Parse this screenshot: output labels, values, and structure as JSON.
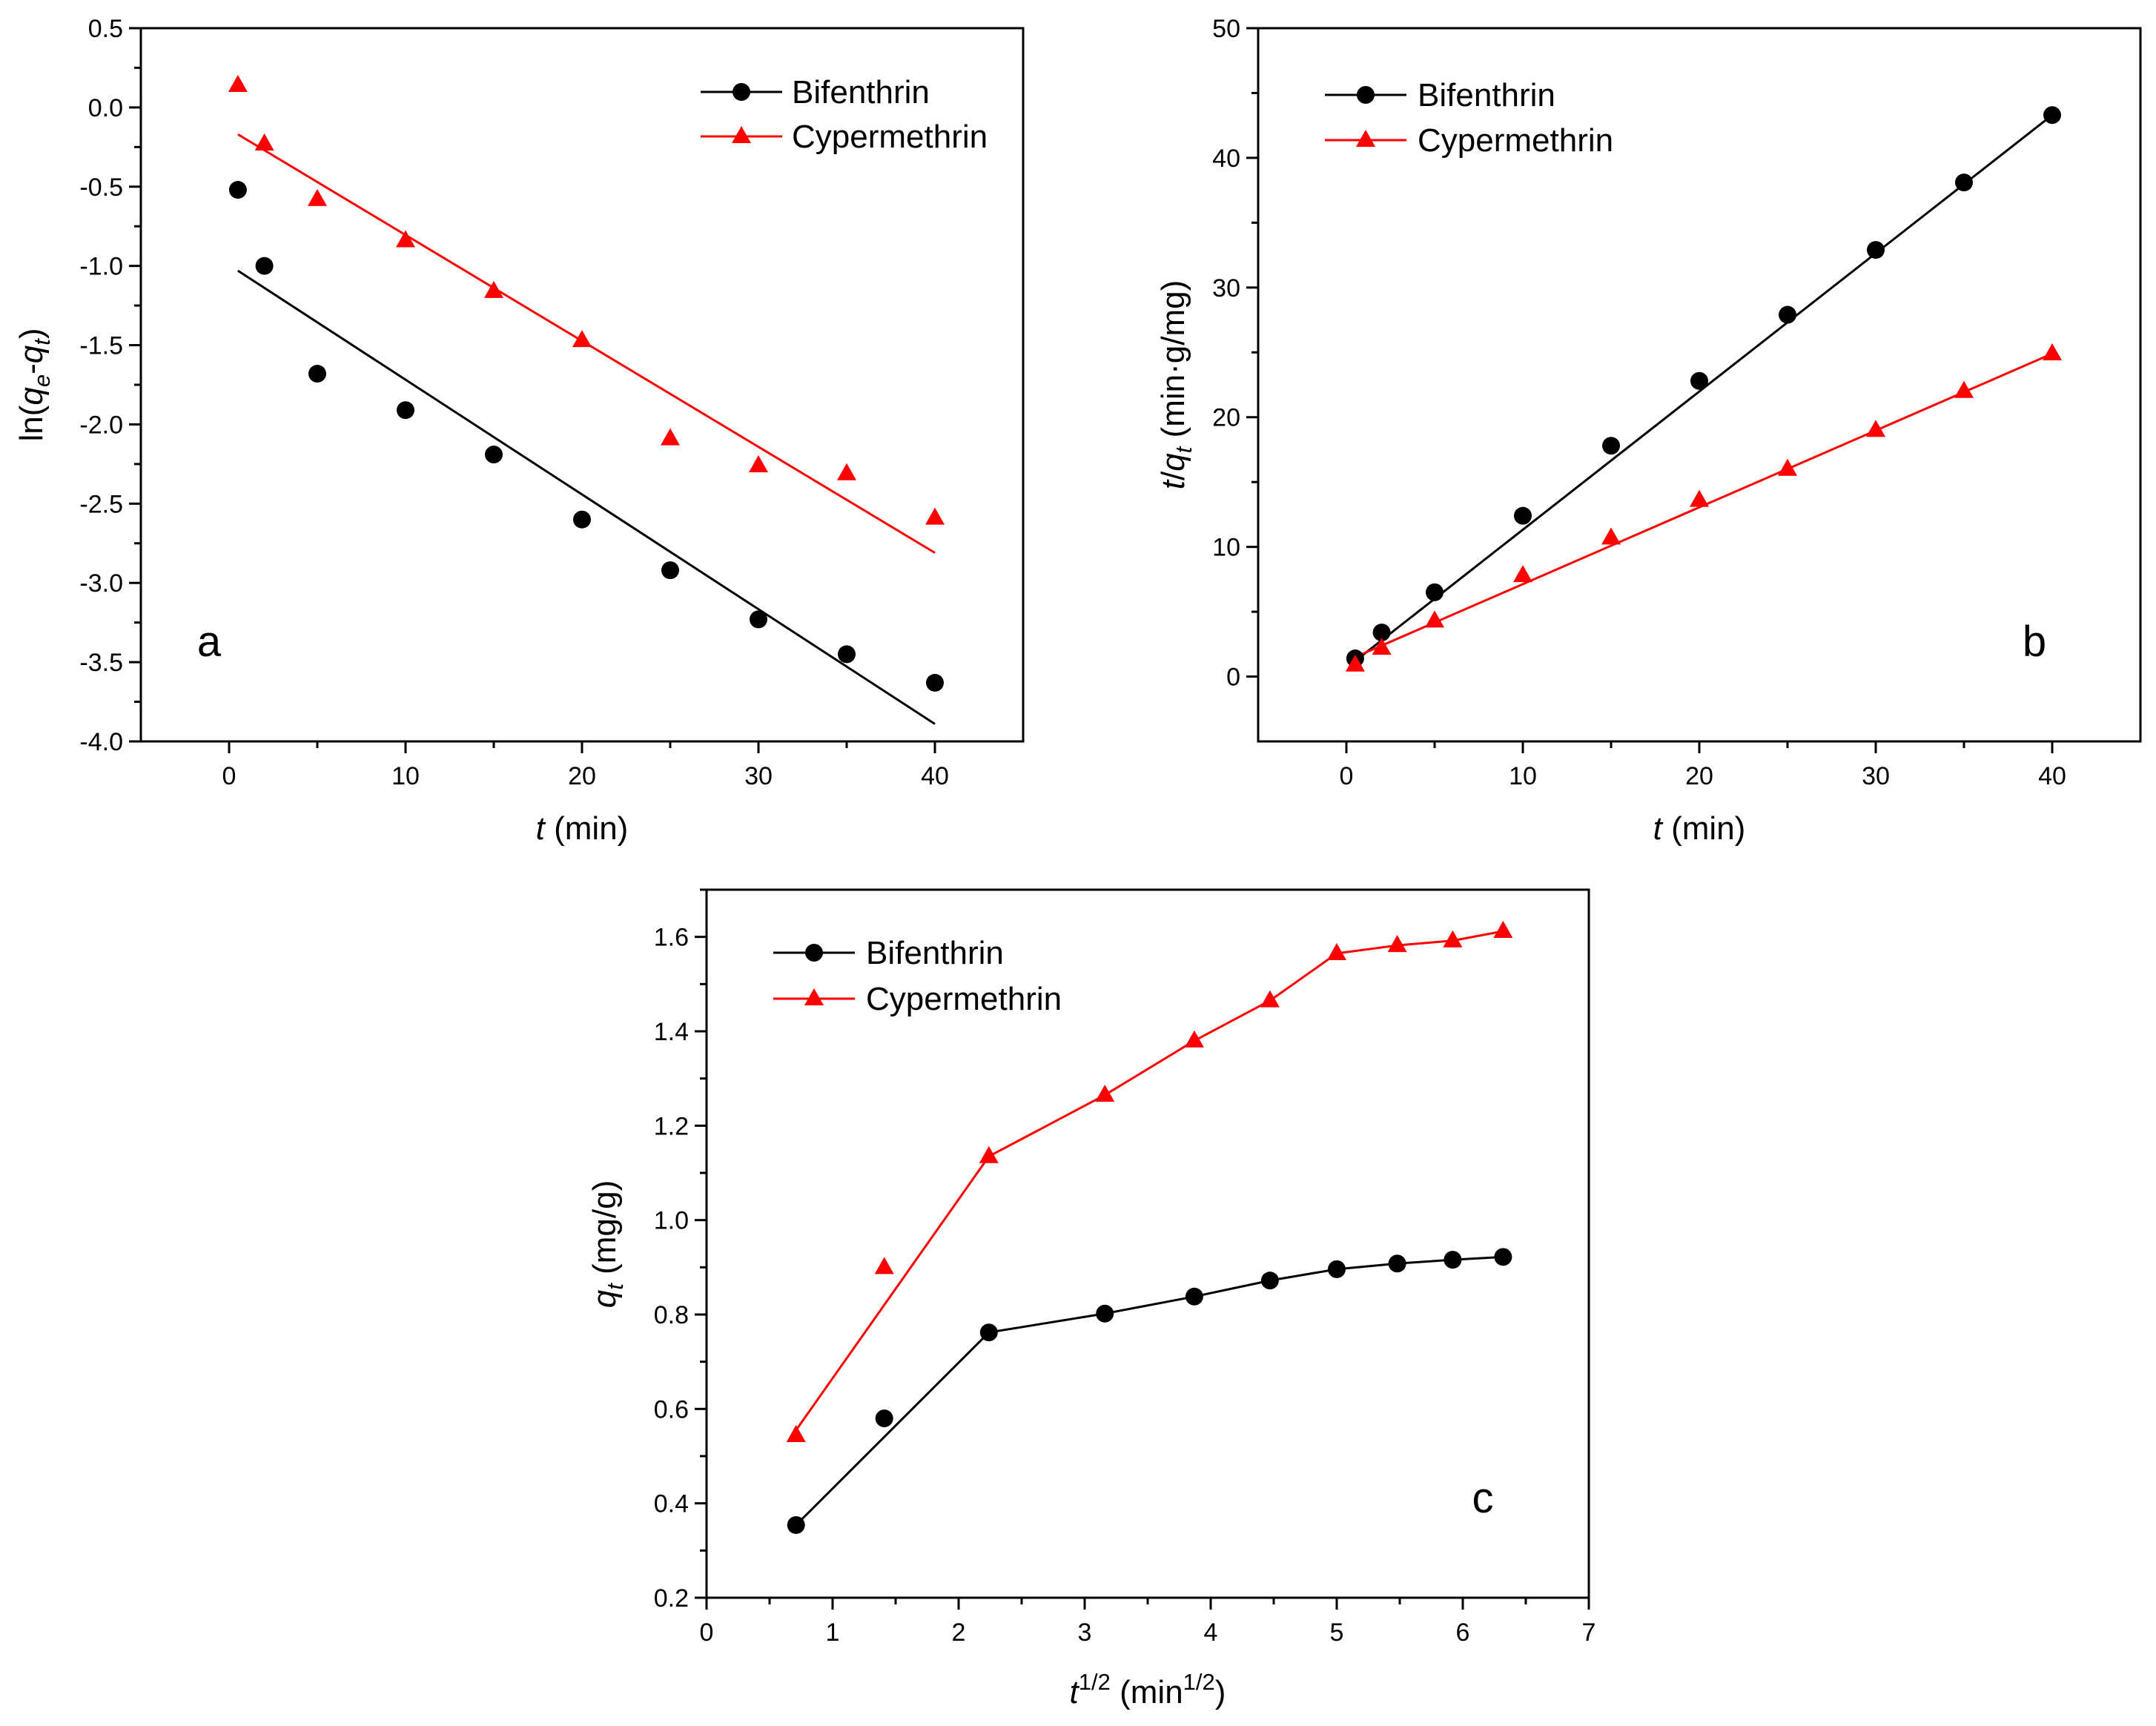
{
  "colors": {
    "bifenthrin": "#000000",
    "cypermethrin": "#ff0000"
  },
  "chart_data": [
    {
      "id": "a",
      "type": "scatter",
      "panel_label": "a",
      "xlabel": {
        "italic": "t",
        "rest": " (min)"
      },
      "ylabel": {
        "prefix": "ln(",
        "q1": "q",
        "sub1": "e",
        "dash": "-",
        "q2": "q",
        "sub2": "t",
        "suffix": ")"
      },
      "xlim": [
        -5,
        45
      ],
      "ylim": [
        -4.0,
        0.5
      ],
      "xticks": [
        0,
        10,
        20,
        30,
        40
      ],
      "yticks": [
        -4.0,
        -3.5,
        -3.0,
        -2.5,
        -2.0,
        -1.5,
        -1.0,
        -0.5,
        0.0,
        0.5
      ],
      "xtick_labels": [
        "0",
        "10",
        "20",
        "30",
        "40"
      ],
      "ytick_labels": [
        "-4.0",
        "-3.5",
        "-3.0",
        "-2.5",
        "-2.0",
        "-1.5",
        "-1.0",
        "-0.5",
        "0.0",
        "0.5"
      ],
      "legend": [
        "Bifenthrin",
        "Cypermethrin"
      ],
      "series": [
        {
          "name": "Bifenthrin",
          "marker": "circle",
          "line": "fit",
          "x": [
            0.5,
            2,
            5,
            10,
            15,
            20,
            25,
            30,
            35,
            40
          ],
          "y": [
            -0.52,
            -1.0,
            -1.68,
            -1.91,
            -2.19,
            -2.6,
            -2.92,
            -3.23,
            -3.45,
            -3.63
          ],
          "fit": [
            [
              0.5,
              -1.03
            ],
            [
              40,
              -3.89
            ]
          ]
        },
        {
          "name": "Cypermethrin",
          "marker": "triangle",
          "line": "fit",
          "x": [
            0.5,
            2,
            5,
            10,
            15,
            20,
            25,
            30,
            35,
            40
          ],
          "y": [
            0.14,
            -0.23,
            -0.58,
            -0.84,
            -1.16,
            -1.47,
            -2.09,
            -2.26,
            -2.31,
            -2.59
          ],
          "fit": [
            [
              0.5,
              -0.17
            ],
            [
              40,
              -2.81
            ]
          ]
        }
      ]
    },
    {
      "id": "b",
      "type": "scatter",
      "panel_label": "b",
      "xlabel": {
        "italic": "t",
        "rest": " (min)"
      },
      "ylabel": {
        "t": "t",
        "slash": "/",
        "q": "q",
        "sub": "t",
        "rest": " (min·g/mg)"
      },
      "xlim": [
        -5,
        45
      ],
      "ylim": [
        -5,
        50
      ],
      "xticks": [
        0,
        10,
        20,
        30,
        40
      ],
      "yticks": [
        0,
        10,
        20,
        30,
        40,
        50
      ],
      "xtick_labels": [
        "0",
        "10",
        "20",
        "30",
        "40"
      ],
      "ytick_labels": [
        "0",
        "10",
        "20",
        "30",
        "40",
        "50"
      ],
      "legend": [
        "Bifenthrin",
        "Cypermethrin"
      ],
      "series": [
        {
          "name": "Bifenthrin",
          "marker": "circle",
          "line": "fit",
          "x": [
            0.5,
            2,
            5,
            10,
            15,
            20,
            25,
            30,
            35,
            40
          ],
          "y": [
            1.4,
            3.4,
            6.5,
            12.4,
            17.8,
            22.8,
            27.9,
            32.9,
            38.1,
            43.3
          ],
          "fit": [
            [
              0.5,
              1.2
            ],
            [
              40,
              43.3
            ]
          ]
        },
        {
          "name": "Cypermethrin",
          "marker": "triangle",
          "line": "fit",
          "x": [
            0.5,
            2,
            5,
            10,
            15,
            20,
            25,
            30,
            35,
            40
          ],
          "y": [
            0.9,
            2.2,
            4.3,
            7.8,
            10.7,
            13.6,
            16.0,
            19.0,
            22.0,
            24.9
          ],
          "fit": [
            [
              0.5,
              1.5
            ],
            [
              40,
              24.9
            ]
          ]
        }
      ]
    },
    {
      "id": "c",
      "type": "line",
      "panel_label": "c",
      "xlabel": {
        "t": "t",
        "sup": "1/2",
        "rest": " (min",
        "sup2": "1/2",
        "close": ")"
      },
      "ylabel": {
        "q": "q",
        "sub": "t",
        "rest": " (mg/g)"
      },
      "xlim": [
        0,
        7
      ],
      "ylim": [
        0.2,
        1.7
      ],
      "xticks": [
        0,
        1,
        2,
        3,
        4,
        5,
        6,
        7
      ],
      "yticks": [
        0.2,
        0.4,
        0.6,
        0.8,
        1.0,
        1.2,
        1.4,
        1.6
      ],
      "xtick_labels": [
        "0",
        "1",
        "2",
        "3",
        "4",
        "5",
        "6",
        "7"
      ],
      "ytick_labels": [
        "0.2",
        "0.4",
        "0.6",
        "0.8",
        "1.0",
        "1.2",
        "1.4",
        "1.6"
      ],
      "legend": [
        "Bifenthrin",
        "Cypermethrin"
      ],
      "series": [
        {
          "name": "Bifenthrin",
          "marker": "circle",
          "x": [
            0.71,
            1.41,
            2.24,
            3.16,
            3.87,
            4.47,
            5.0,
            5.48,
            5.92,
            6.32
          ],
          "y": [
            0.354,
            0.58,
            0.762,
            0.802,
            0.838,
            0.872,
            0.896,
            0.908,
            0.916,
            0.922
          ],
          "line_points": [
            [
              0.71,
              0.354
            ],
            [
              2.24,
              0.762
            ],
            [
              3.16,
              0.802
            ],
            [
              3.87,
              0.838
            ],
            [
              4.47,
              0.872
            ],
            [
              5.0,
              0.896
            ],
            [
              5.48,
              0.908
            ],
            [
              5.92,
              0.916
            ],
            [
              6.32,
              0.922
            ]
          ]
        },
        {
          "name": "Cypermethrin",
          "marker": "triangle",
          "x": [
            0.71,
            1.41,
            2.24,
            3.16,
            3.87,
            4.47,
            5.0,
            5.48,
            5.92,
            6.32
          ],
          "y": [
            0.544,
            0.9,
            1.135,
            1.265,
            1.38,
            1.465,
            1.565,
            1.582,
            1.592,
            1.612
          ],
          "line_points": [
            [
              0.71,
              0.555
            ],
            [
              2.24,
              1.135
            ],
            [
              3.16,
              1.265
            ],
            [
              3.87,
              1.38
            ],
            [
              4.47,
              1.465
            ],
            [
              5.0,
              1.565
            ],
            [
              5.48,
              1.582
            ],
            [
              5.92,
              1.592
            ],
            [
              6.32,
              1.612
            ]
          ]
        }
      ]
    }
  ]
}
